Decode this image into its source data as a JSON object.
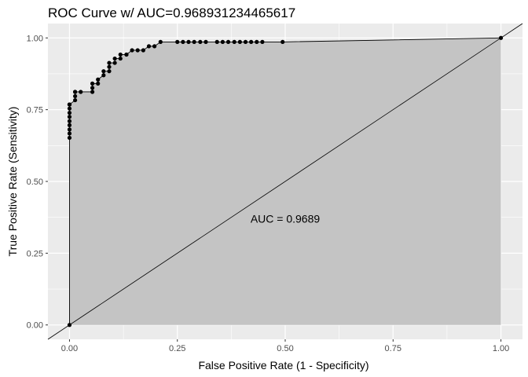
{
  "chart_data": {
    "type": "line",
    "title": "ROC Curve w/ AUC=0.968931234465617",
    "xlabel": "False Positive Rate (1 - Specificity)",
    "ylabel": "True Positive Rate (Sensitivity)",
    "xlim": [
      -0.05,
      1.05
    ],
    "ylim": [
      -0.05,
      1.05
    ],
    "x_ticks": [
      {
        "value": 0.0,
        "label": "0.00"
      },
      {
        "value": 0.25,
        "label": "0.25"
      },
      {
        "value": 0.5,
        "label": "0.50"
      },
      {
        "value": 0.75,
        "label": "0.75"
      },
      {
        "value": 1.0,
        "label": "1.00"
      }
    ],
    "y_ticks": [
      {
        "value": 0.0,
        "label": "0.00"
      },
      {
        "value": 0.25,
        "label": "0.25"
      },
      {
        "value": 0.5,
        "label": "0.50"
      },
      {
        "value": 0.75,
        "label": "0.75"
      },
      {
        "value": 1.0,
        "label": "1.00"
      }
    ],
    "grid": true,
    "shaded_area_under_curve": true,
    "diagonal_reference_line": true,
    "annotation": {
      "text": "AUC =  0.9689",
      "x": 0.5,
      "y": 0.37
    },
    "colors": {
      "panel_background": "#ebebeb",
      "gridline": "#ffffff",
      "area_fill": "#c4c4c4",
      "line": "#000000",
      "point": "#000000"
    },
    "series": [
      {
        "x": [
          0.0,
          0.0,
          0.0,
          0.0,
          0.0,
          0.0,
          0.0,
          0.0,
          0.0,
          0.0,
          0.0,
          0.0,
          0.0,
          0.013,
          0.013,
          0.013,
          0.013,
          0.026,
          0.053,
          0.053,
          0.053,
          0.066,
          0.066,
          0.079,
          0.079,
          0.092,
          0.092,
          0.092,
          0.105,
          0.105,
          0.118,
          0.118,
          0.132,
          0.132,
          0.145,
          0.158,
          0.171,
          0.184,
          0.197,
          0.211,
          0.25,
          0.263,
          0.276,
          0.289,
          0.303,
          0.316,
          0.342,
          0.355,
          0.368,
          0.382,
          0.395,
          0.408,
          0.421,
          0.434,
          0.447,
          0.494,
          1.0
        ],
        "y": [
          0.0,
          0.652,
          0.667,
          0.681,
          0.696,
          0.71,
          0.725,
          0.739,
          0.754,
          0.768,
          0.768,
          0.768,
          0.768,
          0.783,
          0.797,
          0.812,
          0.812,
          0.812,
          0.812,
          0.826,
          0.841,
          0.841,
          0.855,
          0.87,
          0.884,
          0.884,
          0.899,
          0.913,
          0.913,
          0.928,
          0.928,
          0.942,
          0.942,
          0.942,
          0.957,
          0.957,
          0.957,
          0.971,
          0.971,
          0.986,
          0.986,
          0.986,
          0.986,
          0.986,
          0.986,
          0.986,
          0.986,
          0.986,
          0.986,
          0.986,
          0.986,
          0.986,
          0.986,
          0.986,
          0.986,
          0.986,
          1.0
        ]
      }
    ]
  }
}
